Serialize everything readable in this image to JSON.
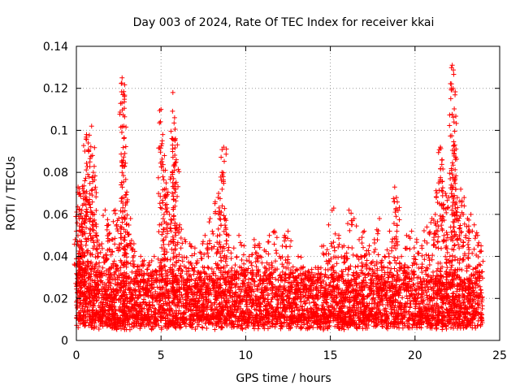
{
  "chart_data": {
    "type": "scatter",
    "title": "Day 003 of 2024, Rate Of TEC Index for receiver kkai",
    "xlabel": "GPS time / hours",
    "ylabel": "ROTI / TECUs",
    "xlim": [
      0,
      25
    ],
    "ylim": [
      0,
      0.14
    ],
    "x_ticks": [
      0,
      5,
      10,
      15,
      20,
      25
    ],
    "x_tick_labels": [
      "0",
      "5",
      "10",
      "15",
      "20",
      "25"
    ],
    "y_ticks": [
      0,
      0.02,
      0.04,
      0.06,
      0.08,
      0.1,
      0.12,
      0.14
    ],
    "y_tick_labels": [
      "0",
      "0.02",
      "0.04",
      "0.06",
      "0.08",
      "0.1",
      "0.12",
      "0.14"
    ],
    "grid": true,
    "marker": "+",
    "series": [
      {
        "name": "ROTI",
        "color": "#ff0000",
        "x": [
          0.05,
          0.1,
          0.15,
          0.2,
          0.25,
          0.3,
          0.35,
          0.4,
          0.45,
          0.5,
          0.6,
          0.7,
          0.8,
          0.9,
          1.0,
          1.1,
          1.2,
          1.3,
          1.5,
          1.7,
          1.9,
          2.1,
          2.3,
          2.5,
          2.7,
          2.75,
          2.8,
          2.85,
          3.0,
          3.2,
          3.4,
          3.6,
          3.8,
          4.0,
          4.3,
          4.6,
          4.9,
          5.0,
          5.1,
          5.2,
          5.3,
          5.5,
          5.7,
          5.8,
          5.85,
          5.9,
          6.1,
          6.4,
          6.7,
          7.0,
          7.3,
          7.6,
          7.9,
          8.2,
          8.4,
          8.6,
          8.7,
          8.8,
          9.0,
          9.3,
          9.6,
          9.9,
          10.2,
          10.5,
          10.8,
          11.1,
          11.4,
          11.7,
          12.0,
          12.3,
          12.5,
          12.8,
          13.1,
          13.4,
          13.7,
          14.0,
          14.3,
          14.6,
          14.9,
          15.2,
          15.5,
          15.8,
          16.1,
          16.4,
          16.7,
          17.0,
          17.3,
          17.6,
          17.9,
          18.2,
          18.5,
          18.8,
          18.9,
          19.2,
          19.5,
          19.8,
          20.1,
          20.4,
          20.7,
          21.0,
          21.2,
          21.4,
          21.5,
          21.6,
          21.8,
          22.0,
          22.2,
          22.25,
          22.3,
          22.35,
          22.5,
          22.7,
          22.9,
          23.1,
          23.3,
          23.5,
          23.7,
          23.9
        ],
        "values": [
          0.056,
          0.073,
          0.045,
          0.062,
          0.04,
          0.052,
          0.058,
          0.07,
          0.065,
          0.076,
          0.098,
          0.094,
          0.085,
          0.102,
          0.08,
          0.072,
          0.05,
          0.04,
          0.046,
          0.062,
          0.055,
          0.048,
          0.062,
          0.058,
          0.125,
          0.117,
          0.102,
          0.083,
          0.066,
          0.058,
          0.046,
          0.035,
          0.04,
          0.038,
          0.037,
          0.04,
          0.035,
          0.11,
          0.098,
          0.088,
          0.075,
          0.06,
          0.118,
          0.106,
          0.096,
          0.086,
          0.055,
          0.048,
          0.046,
          0.044,
          0.042,
          0.05,
          0.058,
          0.066,
          0.07,
          0.08,
          0.092,
          0.058,
          0.05,
          0.044,
          0.05,
          0.045,
          0.04,
          0.048,
          0.046,
          0.043,
          0.05,
          0.052,
          0.04,
          0.05,
          0.052,
          0.035,
          0.04,
          0.035,
          0.033,
          0.03,
          0.032,
          0.045,
          0.055,
          0.063,
          0.05,
          0.045,
          0.062,
          0.058,
          0.048,
          0.052,
          0.045,
          0.048,
          0.058,
          0.04,
          0.052,
          0.073,
          0.068,
          0.04,
          0.05,
          0.052,
          0.048,
          0.045,
          0.054,
          0.058,
          0.06,
          0.075,
          0.092,
          0.086,
          0.07,
          0.068,
          0.131,
          0.12,
          0.104,
          0.093,
          0.068,
          0.072,
          0.068,
          0.058,
          0.06,
          0.055,
          0.05,
          0.045
        ]
      }
    ],
    "dense_band": {
      "description": "dense cloud of points",
      "x_range": [
        0,
        24
      ],
      "value_range": [
        0.005,
        0.03
      ]
    }
  }
}
